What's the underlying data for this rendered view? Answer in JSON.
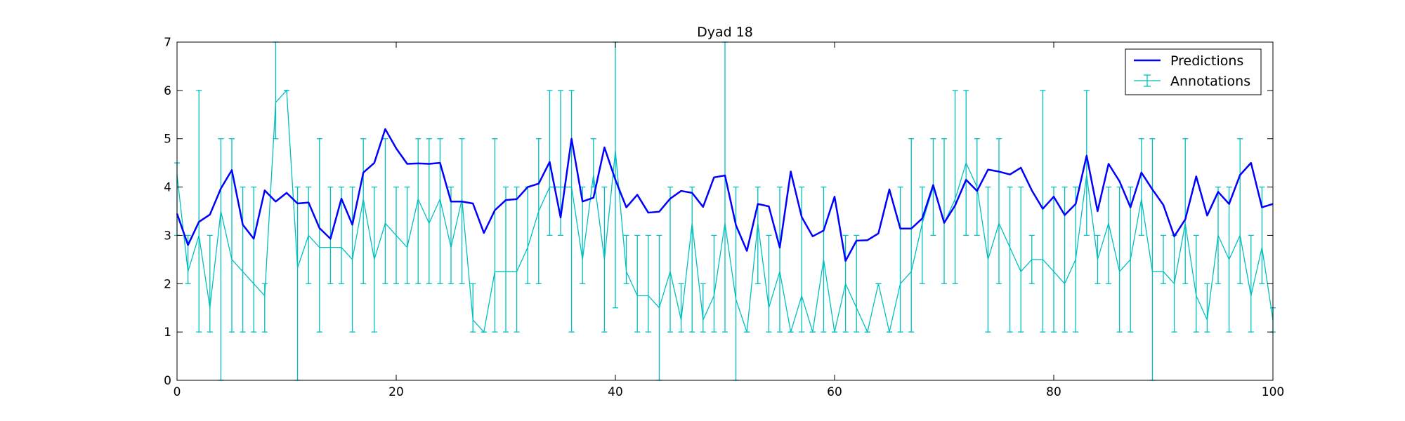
{
  "chart_data": {
    "type": "line",
    "title": "Dyad 18",
    "xlabel": "",
    "ylabel": "",
    "xlim": [
      0,
      100
    ],
    "ylim": [
      0,
      7
    ],
    "x_ticks": [
      0,
      20,
      40,
      60,
      80,
      100
    ],
    "y_ticks": [
      0,
      1,
      2,
      3,
      4,
      5,
      6,
      7
    ],
    "grid": false,
    "legend_position": "top-right",
    "x": [
      0,
      1,
      2,
      3,
      4,
      5,
      6,
      7,
      8,
      9,
      10,
      11,
      12,
      13,
      14,
      15,
      16,
      17,
      18,
      19,
      20,
      21,
      22,
      23,
      24,
      25,
      26,
      27,
      28,
      29,
      30,
      31,
      32,
      33,
      34,
      35,
      36,
      37,
      38,
      39,
      40,
      41,
      42,
      43,
      44,
      45,
      46,
      47,
      48,
      49,
      50,
      51,
      52,
      53,
      54,
      55,
      56,
      57,
      58,
      59,
      60,
      61,
      62,
      63,
      64,
      65,
      66,
      67,
      68,
      69,
      70,
      71,
      72,
      73,
      74,
      75,
      76,
      77,
      78,
      79,
      80,
      81,
      82,
      83,
      84,
      85,
      86,
      87,
      88,
      89,
      90,
      91,
      92,
      93,
      94,
      95,
      96,
      97,
      98,
      99,
      100
    ],
    "series": [
      {
        "name": "Predictions",
        "color": "#0000ff",
        "values": [
          3.45,
          2.8,
          3.28,
          3.43,
          3.97,
          4.35,
          3.22,
          2.93,
          3.93,
          3.7,
          3.88,
          3.66,
          3.68,
          3.15,
          2.93,
          3.76,
          3.22,
          4.3,
          4.5,
          5.2,
          4.8,
          4.48,
          4.49,
          4.48,
          4.5,
          3.7,
          3.7,
          3.66,
          3.05,
          3.52,
          3.73,
          3.75,
          4.0,
          4.07,
          4.52,
          3.37,
          5.0,
          3.7,
          3.78,
          4.82,
          4.15,
          3.58,
          3.84,
          3.47,
          3.49,
          3.76,
          3.92,
          3.88,
          3.59,
          4.2,
          4.24,
          3.21,
          2.68,
          3.65,
          3.6,
          2.75,
          4.32,
          3.38,
          2.98,
          3.1,
          3.8,
          2.47,
          2.89,
          2.9,
          3.04,
          3.95,
          3.14,
          3.14,
          3.35,
          4.04,
          3.26,
          3.62,
          4.15,
          3.92,
          4.36,
          4.32,
          4.26,
          4.4,
          3.93,
          3.55,
          3.8,
          3.42,
          3.65,
          4.65,
          3.5,
          4.48,
          4.12,
          3.58,
          4.3,
          3.95,
          3.63,
          2.98,
          3.33,
          4.22,
          3.41,
          3.9,
          3.65,
          4.25,
          4.5,
          3.58,
          3.65
        ]
      },
      {
        "name": "Annotations",
        "color": "#00bfbf",
        "values": [
          4.25,
          2.25,
          3.0,
          1.5,
          3.5,
          2.5,
          2.25,
          2.0,
          1.75,
          5.75,
          6.0,
          2.33,
          3.0,
          2.75,
          2.75,
          2.75,
          2.5,
          3.75,
          2.5,
          3.25,
          3.0,
          2.75,
          3.75,
          3.25,
          3.75,
          2.75,
          3.75,
          1.25,
          1.0,
          2.25,
          2.25,
          2.25,
          2.75,
          3.5,
          4.0,
          4.0,
          4.0,
          2.5,
          4.25,
          2.5,
          4.75,
          2.25,
          1.75,
          1.75,
          1.5,
          2.25,
          1.25,
          3.25,
          1.25,
          1.75,
          3.25,
          1.67,
          1.0,
          3.25,
          1.5,
          2.25,
          1.0,
          1.75,
          1.0,
          2.5,
          1.0,
          2.0,
          1.5,
          1.0,
          2.0,
          1.0,
          2.0,
          2.25,
          3.25,
          4.0,
          3.25,
          3.75,
          4.5,
          4.0,
          2.5,
          3.25,
          2.75,
          2.25,
          2.5,
          2.5,
          2.25,
          2.0,
          2.5,
          4.25,
          2.5,
          3.25,
          2.25,
          2.5,
          3.75,
          2.25,
          2.25,
          2.0,
          3.25,
          1.75,
          1.25,
          3.0,
          2.5,
          3.0,
          1.75,
          2.75,
          1.25
        ],
        "error_low": [
          3.0,
          2.0,
          1.0,
          1.0,
          0.0,
          1.0,
          1.0,
          1.0,
          1.0,
          5.0,
          6.0,
          0.0,
          2.0,
          1.0,
          2.0,
          2.0,
          1.0,
          2.0,
          1.0,
          2.0,
          2.0,
          2.0,
          2.0,
          2.0,
          2.0,
          2.0,
          2.0,
          1.0,
          1.0,
          1.0,
          1.0,
          1.0,
          2.0,
          2.0,
          3.0,
          3.0,
          1.0,
          2.0,
          4.0,
          1.0,
          1.5,
          2.0,
          1.0,
          1.0,
          0.0,
          1.0,
          1.0,
          1.0,
          1.0,
          1.0,
          1.0,
          0.0,
          1.0,
          2.0,
          1.0,
          1.0,
          1.0,
          1.0,
          1.0,
          1.0,
          1.0,
          1.0,
          1.0,
          1.0,
          2.0,
          1.0,
          1.0,
          1.0,
          2.0,
          3.0,
          2.0,
          2.0,
          3.0,
          3.0,
          1.0,
          2.0,
          1.0,
          1.0,
          2.0,
          1.0,
          1.0,
          1.0,
          1.0,
          3.0,
          2.0,
          2.0,
          1.0,
          1.0,
          3.0,
          0.0,
          2.0,
          1.0,
          2.0,
          1.0,
          1.0,
          2.0,
          1.0,
          2.0,
          1.0,
          2.0,
          1.0
        ],
        "error_high": [
          4.5,
          3.0,
          6.0,
          3.0,
          5.0,
          5.0,
          4.0,
          4.0,
          2.0,
          7.0,
          6.0,
          4.0,
          4.0,
          5.0,
          4.0,
          4.0,
          4.0,
          5.0,
          4.0,
          5.0,
          4.0,
          4.0,
          5.0,
          5.0,
          5.0,
          4.0,
          5.0,
          2.0,
          1.0,
          5.0,
          4.0,
          4.0,
          4.0,
          5.0,
          6.0,
          6.0,
          6.0,
          4.0,
          5.0,
          4.0,
          7.0,
          3.0,
          3.0,
          3.0,
          3.0,
          4.0,
          2.0,
          4.0,
          2.0,
          3.0,
          7.0,
          4.0,
          1.0,
          4.0,
          3.0,
          4.0,
          1.0,
          4.0,
          1.0,
          4.0,
          1.0,
          3.0,
          3.0,
          1.0,
          2.0,
          1.0,
          4.0,
          5.0,
          4.0,
          5.0,
          5.0,
          6.0,
          6.0,
          5.0,
          4.0,
          5.0,
          4.0,
          4.0,
          3.0,
          6.0,
          4.0,
          4.0,
          4.0,
          6.0,
          3.0,
          4.0,
          4.0,
          4.0,
          5.0,
          5.0,
          3.0,
          3.0,
          5.0,
          3.0,
          2.0,
          4.0,
          4.0,
          5.0,
          3.0,
          4.0,
          1.5
        ]
      }
    ]
  }
}
